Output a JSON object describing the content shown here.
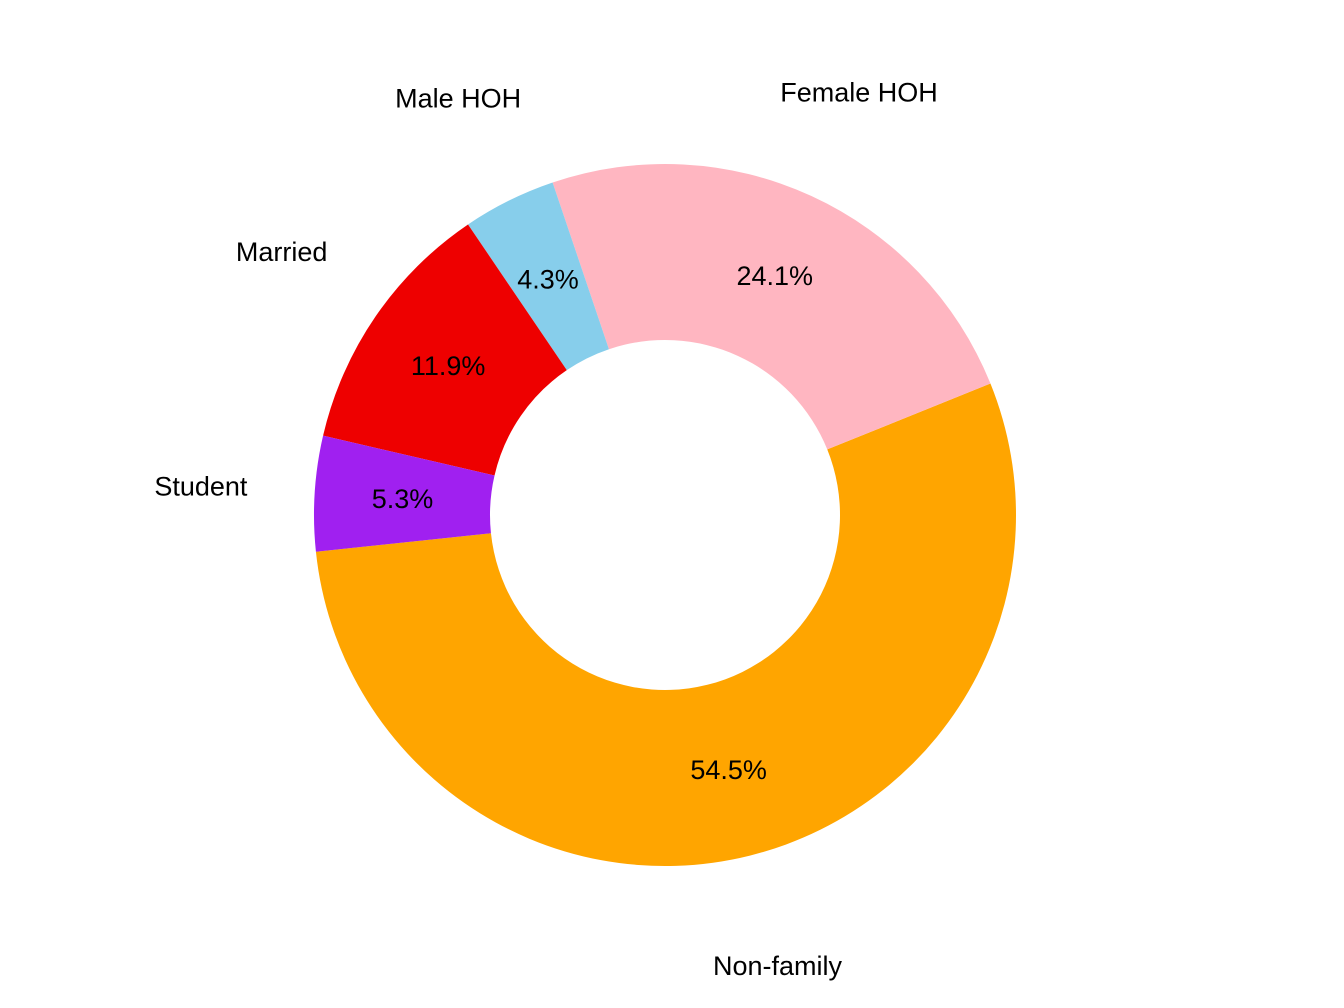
{
  "chart_data": {
    "type": "pie",
    "donut": true,
    "title": "",
    "start_angle_deg": 186,
    "direction": "counterclockwise",
    "slices": [
      {
        "label": "Non-family",
        "value": 54.5,
        "value_label": "54.5%",
        "color": "#FFA500"
      },
      {
        "label": "Female HOH",
        "value": 24.1,
        "value_label": "24.1%",
        "color": "#FFB6C1"
      },
      {
        "label": "Male HOH",
        "value": 4.3,
        "value_label": "4.3%",
        "color": "#87CEEB"
      },
      {
        "label": "Married",
        "value": 11.9,
        "value_label": "11.9%",
        "color": "#EE0000"
      },
      {
        "label": "Student",
        "value": 5.3,
        "value_label": "5.3%",
        "color": "#A020F0"
      }
    ]
  }
}
